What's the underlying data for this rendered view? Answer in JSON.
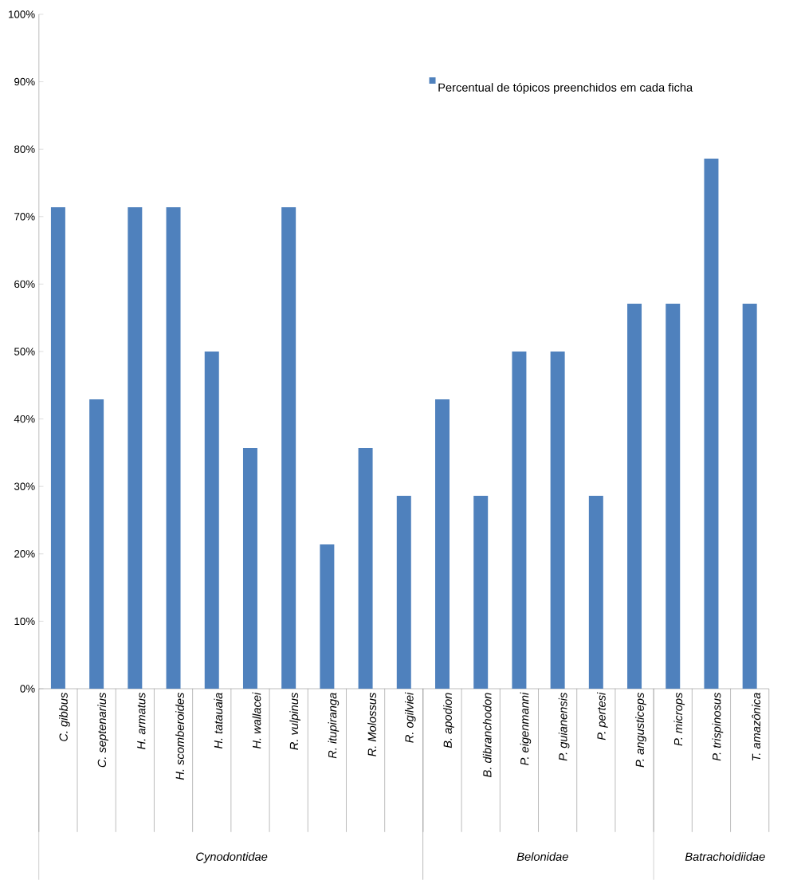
{
  "chart_data": {
    "type": "bar",
    "categories": [
      "C. gibbus",
      "C. septenarius",
      "H. armatus",
      "H. scomberoides",
      "H. tatauaia",
      "H. wallacei",
      "R. vulpinus",
      "R. itupiranga",
      "R. Molossus",
      "R. ogilviei",
      "B. apodion",
      "B. dibranchodon",
      "P. eigenmanni",
      "P. guianensis",
      "P. pertesi",
      "P. angusticeps",
      "P. microps",
      "P. trispinosus",
      "T. amazônica"
    ],
    "series": [
      {
        "name": "Percentual de tópicos preenchidos em cada ficha",
        "color": "#4f81bd",
        "values": [
          71.4,
          42.9,
          71.4,
          71.4,
          50,
          35.7,
          71.4,
          21.4,
          35.7,
          28.6,
          42.9,
          28.6,
          50,
          50,
          28.6,
          57.1,
          57.1,
          78.6,
          57.1
        ]
      }
    ],
    "ylim": [
      0,
      100
    ],
    "yticks": [
      {
        "value": 0,
        "label": "0%"
      },
      {
        "value": 10,
        "label": "10%"
      },
      {
        "value": 20,
        "label": "20%"
      },
      {
        "value": 30,
        "label": "30%"
      },
      {
        "value": 40,
        "label": "40%"
      },
      {
        "value": 50,
        "label": "50%"
      },
      {
        "value": 60,
        "label": "60%"
      },
      {
        "value": 70,
        "label": "70%"
      },
      {
        "value": 80,
        "label": "80%"
      },
      {
        "value": 90,
        "label": "90%"
      },
      {
        "value": 100,
        "label": "100%"
      }
    ],
    "annotations": [
      "Cynodontidae",
      "Belonidae",
      "Batrachoidiidae"
    ],
    "grid": false,
    "legend": "top right"
  }
}
